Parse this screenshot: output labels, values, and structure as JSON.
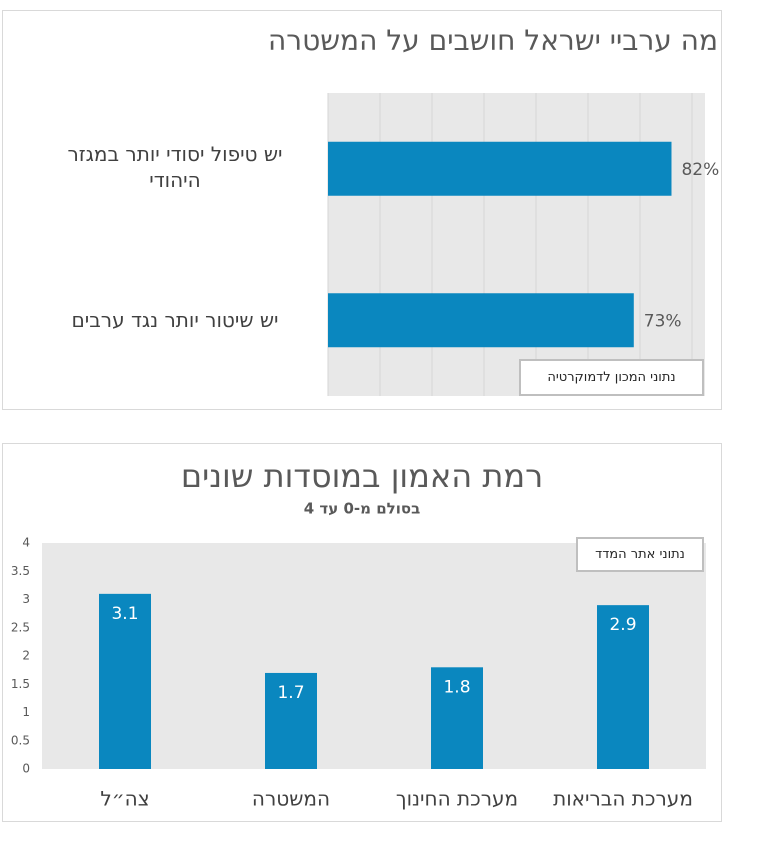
{
  "chart_data": [
    {
      "type": "barh",
      "title": "מה ערביי ישראל חושבים על המשטרה",
      "categories": [
        "יש טיפול יסודי יותר במגזר היהודי",
        "יש שיטור יותר נגד ערבים"
      ],
      "values": [
        82,
        73
      ],
      "value_labels": [
        "82%",
        "73%"
      ],
      "color": "#0a87bf",
      "xlim": [
        0,
        90
      ],
      "grid": true,
      "annotation": "נתוני המכון לדמוקרטיה"
    },
    {
      "type": "bar",
      "title": "רמת האמון במוסדות שונים",
      "subtitle": "בסולם מ-0 עד 4",
      "categories": [
        "צה״ל",
        "המשטרה",
        "מערכת החינוך",
        "מערכת הבריאות"
      ],
      "values": [
        3.1,
        1.7,
        1.8,
        2.9
      ],
      "color": "#0a87bf",
      "ylim": [
        0,
        4
      ],
      "yticks": [
        0,
        0.5,
        1,
        1.5,
        2,
        2.5,
        3,
        3.5,
        4
      ],
      "grid": false,
      "annotation": "נתוני אתר המדד"
    }
  ]
}
